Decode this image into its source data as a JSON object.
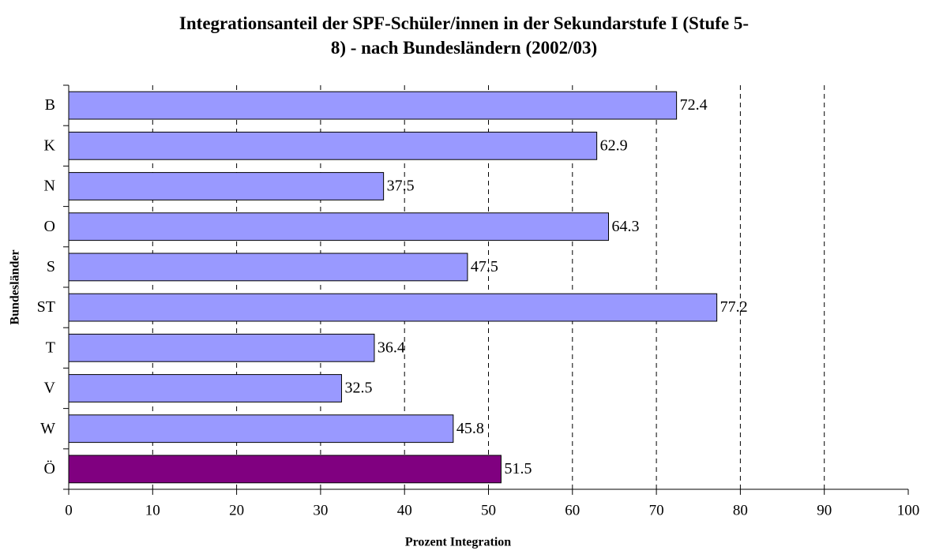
{
  "chart_data": {
    "type": "barh",
    "title": "Integrationsanteil der SPF-Schüler/innen in der Sekundarstufe I (Stufe 5-8) - nach Bundesländern (2002/03)",
    "xlabel": "Prozent Integration",
    "ylabel": "Bundesländer",
    "categories": [
      "B",
      "K",
      "N",
      "O",
      "S",
      "ST",
      "T",
      "V",
      "W",
      "Ö"
    ],
    "values": [
      72.4,
      62.9,
      37.5,
      64.3,
      47.5,
      77.2,
      36.4,
      32.5,
      45.8,
      51.5
    ],
    "colors": [
      "#9999ff",
      "#9999ff",
      "#9999ff",
      "#9999ff",
      "#9999ff",
      "#9999ff",
      "#9999ff",
      "#9999ff",
      "#9999ff",
      "#800080"
    ],
    "xlim": [
      0,
      100
    ],
    "xticks": [
      0,
      10,
      20,
      30,
      40,
      50,
      60,
      70,
      80,
      90,
      100
    ],
    "grid": true
  }
}
